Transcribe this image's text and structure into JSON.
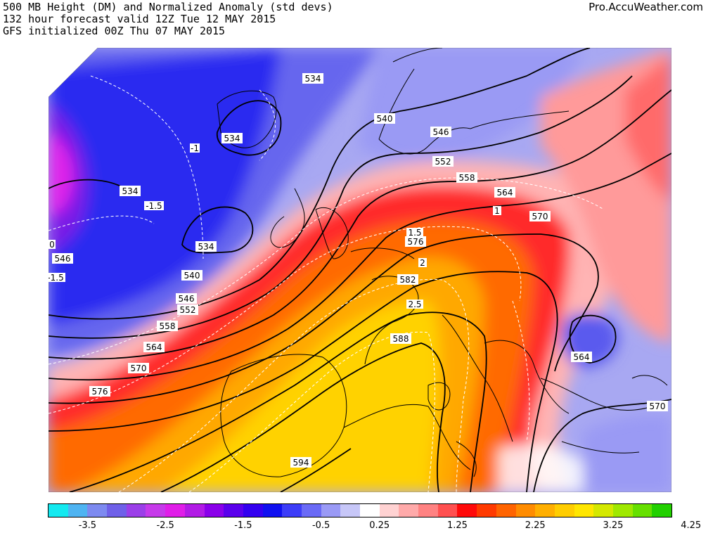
{
  "header": {
    "line1": "500 MB Height (DM) and Normalized Anomaly (std devs)",
    "line2": "132 hour forecast valid 12Z Tue 12 MAY 2015",
    "line3": "GFS initialized 00Z Thu 07 MAY 2015",
    "brand": "Pro.AccuWeather.com"
  },
  "colorbar": {
    "colors": [
      "#14e9f0",
      "#4fb4f2",
      "#7d8af0",
      "#6f60e8",
      "#9b3fe8",
      "#c63aea",
      "#e01ee8",
      "#b21be6",
      "#8a00ea",
      "#5a00ec",
      "#3300f0",
      "#1010f0",
      "#3d3df8",
      "#6a6af6",
      "#9a9af6",
      "#c7c7f8",
      "#ffffff",
      "#ffd2d2",
      "#ffaaaa",
      "#ff8282",
      "#ff5050",
      "#ff0a0a",
      "#ff3a00",
      "#ff6400",
      "#ff8c00",
      "#ffaf00",
      "#ffcd00",
      "#ffe600",
      "#d4e800",
      "#9fe800",
      "#66e000",
      "#22d000"
    ],
    "tick_labels": [
      "-3.5",
      "-2.5",
      "-1.5",
      "-0.5",
      "0.25",
      "1.25",
      "2.25",
      "3.25",
      "4.25"
    ],
    "tick_values": [
      -3.5,
      -2.5,
      -1.5,
      -0.5,
      0.25,
      1.25,
      2.25,
      3.25,
      4.25
    ]
  },
  "contour_labels": {
    "height": [
      "534",
      "534",
      "534",
      "534",
      "540",
      "540",
      "546",
      "546",
      "546",
      "552",
      "552",
      "558",
      "558",
      "564",
      "564",
      "570",
      "570",
      "576",
      "576",
      "582",
      "588",
      "594",
      "564",
      "570"
    ],
    "anomaly": [
      "-1",
      "-1.5",
      "0",
      "-1.5",
      "1",
      "1.5",
      "2",
      "2.5"
    ]
  }
}
